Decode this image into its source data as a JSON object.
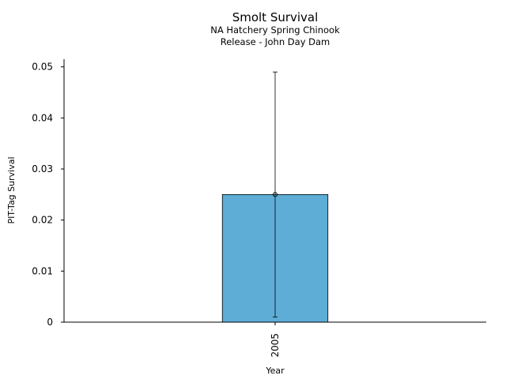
{
  "chart_data": {
    "type": "bar",
    "title": "Smolt Survival",
    "subtitle": [
      "NA Hatchery Spring Chinook",
      "Release - John Day Dam"
    ],
    "xlabel": "Year",
    "ylabel": "PIT-Tag Survival",
    "categories": [
      "2005"
    ],
    "values": [
      0.025
    ],
    "error_low": [
      0.001
    ],
    "error_high": [
      0.049
    ],
    "ylim": [
      0,
      0.0515
    ],
    "yticks": [
      0,
      0.01,
      0.02,
      0.03,
      0.04,
      0.05
    ],
    "ytick_labels": [
      "0",
      "0.01",
      "0.02",
      "0.03",
      "0.04",
      "0.05"
    ],
    "bar_color": "#5DADD6",
    "grid": false
  }
}
